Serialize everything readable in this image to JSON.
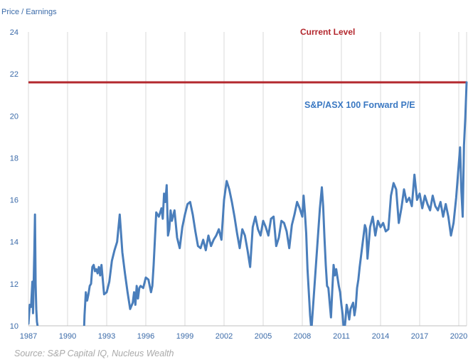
{
  "chart_data": {
    "type": "line",
    "ylabel": "Price / Earnings",
    "ylim": [
      10,
      24
    ],
    "y_ticks": [
      10,
      12,
      14,
      16,
      18,
      20,
      22,
      24
    ],
    "xlim": [
      1987,
      2020.6
    ],
    "x_ticks": [
      1987,
      1990,
      1993,
      1996,
      1999,
      2002,
      2005,
      2008,
      2011,
      2014,
      2017,
      2020
    ],
    "grid": "vertical",
    "colors": {
      "series": "#4a7ebb",
      "reference": "#b3272d"
    },
    "reference_line": {
      "label": "Current Level",
      "value": 21.6
    },
    "series": [
      {
        "name": "S&P/ASX 100 Forward P/E",
        "x": [
          1987.0,
          1987.1,
          1987.2,
          1987.3,
          1987.35,
          1987.45,
          1987.5,
          1987.55,
          1987.6,
          1987.65,
          1987.7,
          1987.8,
          1991.25,
          1991.3,
          1991.4,
          1991.5,
          1991.6,
          1991.7,
          1991.8,
          1991.9,
          1992.0,
          1992.1,
          1992.2,
          1992.3,
          1992.4,
          1992.5,
          1992.6,
          1992.7,
          1992.8,
          1993.0,
          1993.2,
          1993.4,
          1993.6,
          1993.8,
          1994.0,
          1994.1,
          1994.2,
          1994.4,
          1994.6,
          1994.8,
          1995.0,
          1995.1,
          1995.2,
          1995.3,
          1995.4,
          1995.5,
          1995.6,
          1995.8,
          1996.0,
          1996.2,
          1996.4,
          1996.5,
          1996.6,
          1996.8,
          1997.0,
          1997.2,
          1997.3,
          1997.4,
          1997.5,
          1997.6,
          1997.7,
          1997.8,
          1997.9,
          1998.0,
          1998.2,
          1998.4,
          1998.6,
          1998.8,
          1999.0,
          1999.2,
          1999.4,
          1999.6,
          1999.8,
          2000.0,
          2000.2,
          2000.4,
          2000.6,
          2000.8,
          2001.0,
          2001.2,
          2001.4,
          2001.6,
          2001.8,
          2002.0,
          2002.2,
          2002.4,
          2002.6,
          2002.8,
          2003.0,
          2003.2,
          2003.4,
          2003.6,
          2003.8,
          2004.0,
          2004.2,
          2004.4,
          2004.6,
          2004.8,
          2005.0,
          2005.2,
          2005.4,
          2005.6,
          2005.8,
          2006.0,
          2006.2,
          2006.4,
          2006.6,
          2006.8,
          2007.0,
          2007.2,
          2007.4,
          2007.6,
          2007.8,
          2008.0,
          2008.1,
          2008.2,
          2008.3,
          2008.4,
          2008.5,
          2008.6,
          2008.7,
          2009.35,
          2009.5,
          2009.6,
          2009.7,
          2009.8,
          2009.9,
          2010.0,
          2010.1,
          2010.2,
          2010.3,
          2010.4,
          2010.5,
          2010.6,
          2010.7,
          2010.8,
          2010.9,
          2011.0,
          2011.1,
          2011.2,
          2011.3,
          2011.4,
          2011.5,
          2011.6,
          2011.7,
          2011.9,
          2012.0,
          2012.1,
          2012.2,
          2012.3,
          2012.4,
          2012.5,
          2012.6,
          2012.7,
          2012.8,
          2012.9,
          2013.0,
          2013.2,
          2013.4,
          2013.6,
          2013.8,
          2014.0,
          2014.2,
          2014.4,
          2014.6,
          2014.8,
          2015.0,
          2015.2,
          2015.4,
          2015.6,
          2015.8,
          2016.0,
          2016.2,
          2016.4,
          2016.6,
          2016.8,
          2017.0,
          2017.2,
          2017.4,
          2017.6,
          2017.8,
          2018.0,
          2018.2,
          2018.4,
          2018.6,
          2018.8,
          2019.0,
          2019.2,
          2019.4,
          2019.6,
          2019.8,
          2020.0,
          2020.1,
          2020.2,
          2020.3,
          2020.4,
          2020.5,
          2020.6
        ],
        "values": [
          10.1,
          11.0,
          10.9,
          12.1,
          10.6,
          13.5,
          15.3,
          12.0,
          10.8,
          10.2,
          10.0,
          9.0,
          9.6,
          10.5,
          11.6,
          11.2,
          11.5,
          11.9,
          12.0,
          12.8,
          12.9,
          12.6,
          12.7,
          12.5,
          12.8,
          12.4,
          12.9,
          12.2,
          11.5,
          11.6,
          12.1,
          13.1,
          13.6,
          14.0,
          15.3,
          14.4,
          13.5,
          12.5,
          11.6,
          10.8,
          11.1,
          11.6,
          11.0,
          11.9,
          11.3,
          11.8,
          11.9,
          11.8,
          12.3,
          12.2,
          11.6,
          11.9,
          12.9,
          15.4,
          15.2,
          15.6,
          15.1,
          16.3,
          15.9,
          16.7,
          14.3,
          14.6,
          15.5,
          15.0,
          15.5,
          14.2,
          13.7,
          14.7,
          15.3,
          15.8,
          15.9,
          15.3,
          14.5,
          13.8,
          13.7,
          14.1,
          13.6,
          14.3,
          13.8,
          14.1,
          14.3,
          14.6,
          14.1,
          16.0,
          16.9,
          16.5,
          15.9,
          15.2,
          14.4,
          13.7,
          14.6,
          14.3,
          13.6,
          12.8,
          14.7,
          15.2,
          14.6,
          14.3,
          15.0,
          14.7,
          14.3,
          15.1,
          15.2,
          13.8,
          14.2,
          15.0,
          14.9,
          14.5,
          13.7,
          14.8,
          15.3,
          15.9,
          15.6,
          15.2,
          16.2,
          15.4,
          14.4,
          12.7,
          11.6,
          10.5,
          9.8,
          15.6,
          16.6,
          15.7,
          14.2,
          12.9,
          11.9,
          11.8,
          11.1,
          10.4,
          11.7,
          12.9,
          12.4,
          12.7,
          12.3,
          11.9,
          11.6,
          11.0,
          10.5,
          9.6,
          10.2,
          11.0,
          10.7,
          10.3,
          10.8,
          11.1,
          10.5,
          10.9,
          11.8,
          12.2,
          12.8,
          13.3,
          13.8,
          14.3,
          14.8,
          14.6,
          13.2,
          14.7,
          15.2,
          14.3,
          15.0,
          14.7,
          14.9,
          14.5,
          14.6,
          16.2,
          16.8,
          16.5,
          14.9,
          15.6,
          16.5,
          15.9,
          16.1,
          15.7,
          17.2,
          16.0,
          16.3,
          15.6,
          16.2,
          15.8,
          15.5,
          16.2,
          15.7,
          15.5,
          15.9,
          15.2,
          15.8,
          15.2,
          14.3,
          14.9,
          16.1,
          17.7,
          18.5,
          16.4,
          15.2,
          18.6,
          19.9,
          21.6
        ]
      }
    ]
  },
  "annotations": {
    "current_level_label": "Current Level",
    "series_label": "S&P/ASX 100 Forward P/E",
    "source": "Source: S&P Capital IQ, Nucleus Wealth"
  }
}
